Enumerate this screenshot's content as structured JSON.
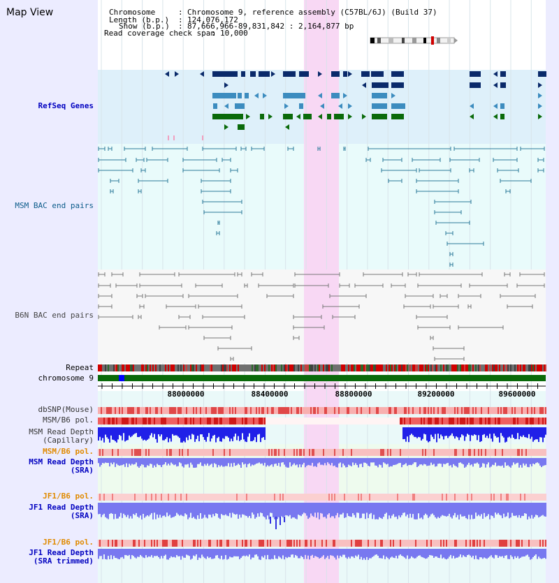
{
  "header": {
    "title": "Map View",
    "chromosome_label": "Chromosome",
    "chromosome_value": "Chromosome 9, reference assembly (C57BL/6J) (Build 37)",
    "length_label": "Length (b.p.)",
    "length_value": "124,076,172",
    "show_label": "Show (b.p.)",
    "show_value": "87,666,966-89,831,842 : 2,164,877 bp",
    "span_label": "Read coverage check span",
    "span_value": "10,000"
  },
  "tracks": {
    "refseq": "RefSeq Genes",
    "msm_bac": "MSM BAC end pairs",
    "b6n_bac": "B6N BAC end pairs",
    "repeat": "Repeat",
    "chromosome": "chromosome 9",
    "dbsnp": "dbSNP(Mouse)",
    "msm_b6_pol": "MSM/B6 pol.",
    "msm_depth_cap_1": "MSM Read Depth",
    "msm_depth_cap_2": "(Capillary)",
    "msm_b6_pol_2": "MSM/B6 pol.",
    "msm_depth_sra_1": "MSM Read Depth",
    "msm_depth_sra_2": "(SRA)",
    "jf1_b6_pol": "JF1/B6 pol.",
    "jf1_depth_sra_1": "JF1 Read Depth",
    "jf1_depth_sra_2": "(SRA)",
    "jf1_b6_pol_2": "JF1/B6 pol.",
    "jf1_depth_trim_1": "JF1 Read Depth",
    "jf1_depth_trim_2": "(SRA trimmed)"
  },
  "ruler_ticks": [
    "88000000",
    "88400000",
    "88800000",
    "89200000",
    "89600000"
  ],
  "colors": {
    "refseq_bg": "#def0fa",
    "bac_bg": "#e9fbfb",
    "highlight": "#f8d8f4",
    "gene_dark": "#0a2a6a",
    "gene_mid": "#3c8cbf",
    "gene_green": "#0a6a0a",
    "bac_teal": "#2a7a9a",
    "bac_gray": "#777777",
    "depth_blue": "#2020e8",
    "depth_lavender": "#7878f0",
    "pol_red": "#e83030"
  }
}
